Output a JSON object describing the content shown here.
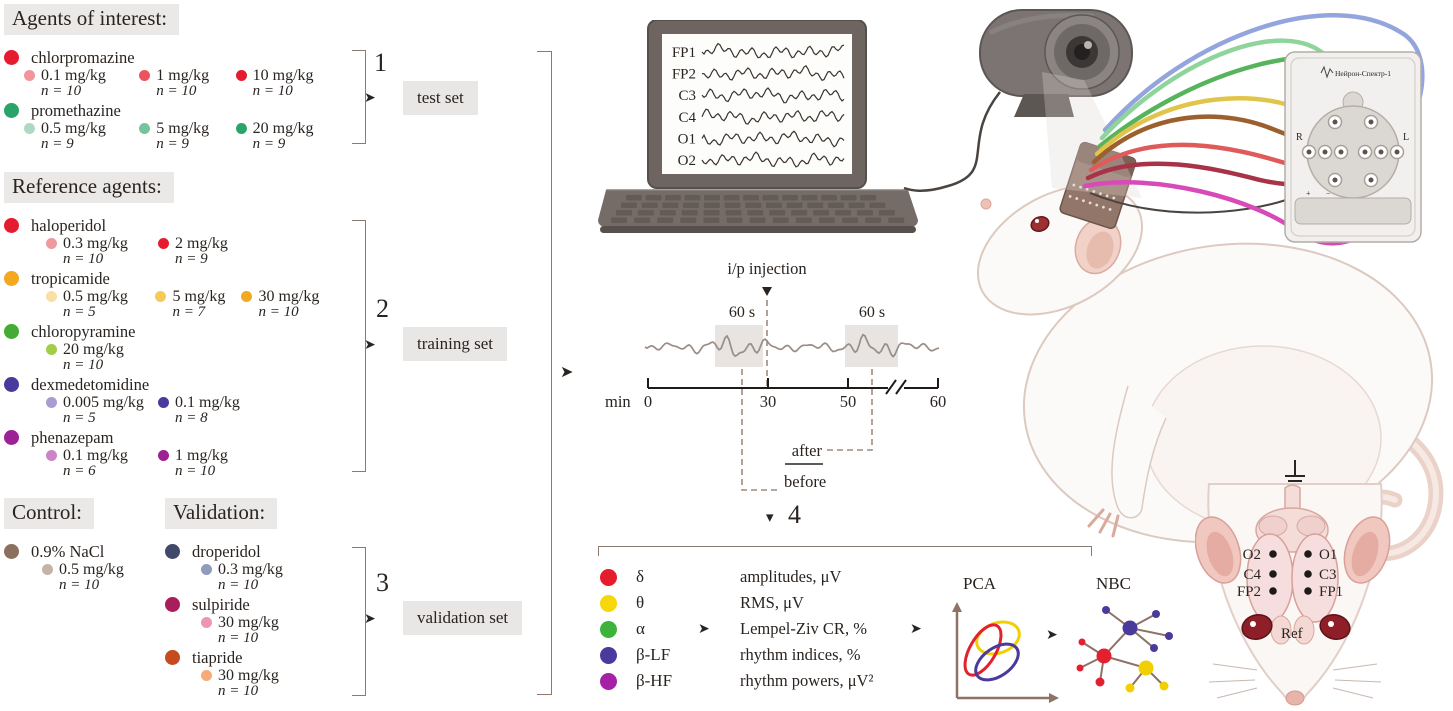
{
  "icons": {
    "arrow_right": "➤",
    "arrow_down": "▾"
  },
  "panels": {
    "agents_of_interest": {
      "title": "Agents of interest:",
      "agents": [
        {
          "name": "chlorpromazine",
          "color": "#e51c30",
          "doses": [
            {
              "label": "0.1 mg/kg",
              "n": "n = 10",
              "color": "#f2959b"
            },
            {
              "label": "1 mg/kg",
              "n": "n = 10",
              "color": "#e9545e"
            },
            {
              "label": "10 mg/kg",
              "n": "n = 10",
              "color": "#e51c30"
            }
          ]
        },
        {
          "name": "promethazine",
          "color": "#2ba46a",
          "doses": [
            {
              "label": "0.5 mg/kg",
              "n": "n = 9",
              "color": "#abd9c4"
            },
            {
              "label": "5 mg/kg",
              "n": "n = 9",
              "color": "#74c49e"
            },
            {
              "label": "20 mg/kg",
              "n": "n = 9",
              "color": "#2ba46a"
            }
          ]
        }
      ]
    },
    "reference_agents": {
      "title": "Reference agents:",
      "agents": [
        {
          "name": "haloperidol",
          "color": "#e51c30",
          "doses": [
            {
              "label": "0.3 mg/kg",
              "n": "n = 10",
              "color": "#f0999c"
            },
            {
              "label": "2 mg/kg",
              "n": "n = 9",
              "color": "#e51c30"
            }
          ]
        },
        {
          "name": "tropicamide",
          "color": "#f3a81f",
          "doses": [
            {
              "label": "0.5 mg/kg",
              "n": "n = 5",
              "color": "#f8e0a4"
            },
            {
              "label": "5 mg/kg",
              "n": "n = 7",
              "color": "#f6ca57"
            },
            {
              "label": "30 mg/kg",
              "n": "n = 10",
              "color": "#f3a81f"
            }
          ]
        },
        {
          "name": "chloropyramine",
          "color": "#44ab34",
          "doses": [
            {
              "label": "20 mg/kg",
              "n": "n = 10",
              "color": "#a0ce47"
            }
          ]
        },
        {
          "name": "dexmedetomidine",
          "color": "#4b3a9d",
          "doses": [
            {
              "label": "0.005 mg/kg",
              "n": "n = 5",
              "color": "#a99cd2"
            },
            {
              "label": "0.1 mg/kg",
              "n": "n = 8",
              "color": "#4b3a9d"
            }
          ]
        },
        {
          "name": "phenazepam",
          "color": "#9c2195",
          "doses": [
            {
              "label": "0.1 mg/kg",
              "n": "n = 6",
              "color": "#cd84c6"
            },
            {
              "label": "1 mg/kg",
              "n": "n = 10",
              "color": "#9c2195"
            }
          ]
        }
      ]
    },
    "control": {
      "title": "Control:",
      "agents": [
        {
          "name": "0.9% NaCl",
          "color": "#8b7060",
          "doses": [
            {
              "label": "0.5 mg/kg",
              "n": "n = 10",
              "color": "#c5b3a7"
            }
          ]
        }
      ]
    },
    "validation": {
      "title": "Validation:",
      "agents": [
        {
          "name": "droperidol",
          "color": "#40496a",
          "doses": [
            {
              "label": "0.3 mg/kg",
              "n": "n = 10",
              "color": "#8f9cba"
            }
          ]
        },
        {
          "name": "sulpiride",
          "color": "#aa1d5d",
          "doses": [
            {
              "label": "30 mg/kg",
              "n": "n = 10",
              "color": "#ee95b5"
            }
          ]
        },
        {
          "name": "tiapride",
          "color": "#c64b1e",
          "doses": [
            {
              "label": "30 mg/kg",
              "n": "n = 10",
              "color": "#f6aa79"
            }
          ]
        }
      ]
    }
  },
  "groups": [
    {
      "number": "1",
      "label": "test set"
    },
    {
      "number": "2",
      "label": "training set"
    },
    {
      "number": "3",
      "label": "validation set"
    }
  ],
  "eeg_channels": [
    "FP1",
    "FP2",
    "C3",
    "C4",
    "O1",
    "O2"
  ],
  "timeline": {
    "injection_label": "i/p injection",
    "window_labels": [
      "60 s",
      "60 s"
    ],
    "axis_unit": "min",
    "ticks": [
      "0",
      "30",
      "50",
      "60"
    ],
    "after_label": "after",
    "before_label": "before",
    "step_number": "4"
  },
  "features": {
    "bands": [
      {
        "symbol": "δ",
        "color": "#e51c2c"
      },
      {
        "symbol": "θ",
        "color": "#f6d70c"
      },
      {
        "symbol": "α",
        "color": "#3cb43c"
      },
      {
        "symbol": "β-LF",
        "color": "#4b3a9d"
      },
      {
        "symbol": "β-HF",
        "color": "#a521a5"
      }
    ],
    "metrics": [
      "amplitudes, μV",
      "RMS, μV",
      "Lempel-Ziv CR, %",
      "rhythm indices, %",
      "rhythm powers, μV²"
    ],
    "pca_label": "PCA",
    "nbc_label": "NBC"
  },
  "device": {
    "label": "Нейрон-Спектр-1",
    "left_marker": "R",
    "right_marker": "L"
  },
  "head_map": {
    "left_labels": [
      "O2",
      "C4",
      "FP2"
    ],
    "right_labels": [
      "O1",
      "C3",
      "FP1"
    ],
    "ref_label": "Ref"
  }
}
